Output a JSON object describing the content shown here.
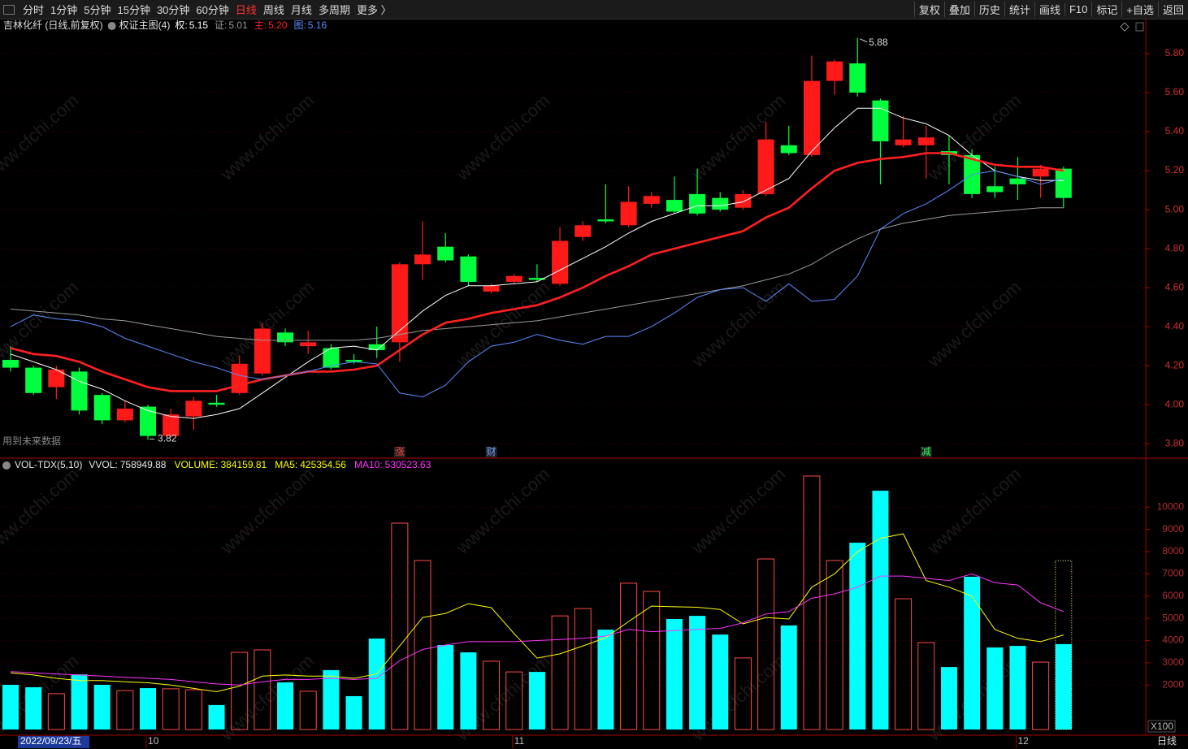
{
  "toolbar": {
    "periods": [
      "分时",
      "1分钟",
      "5分钟",
      "15分钟",
      "30分钟",
      "60分钟",
      "日线",
      "周线",
      "月线",
      "多周期",
      "更多 〉"
    ],
    "active_period": 6,
    "tools": [
      "复权",
      "叠加",
      "历史",
      "统计",
      "画线",
      "F10",
      "标记",
      "+自选",
      "返回"
    ]
  },
  "watermark": "www.cfchi.com",
  "future_note": "用到未来数据",
  "corner_label": "日线",
  "cursor_date": "2022/09/23/五",
  "chart_data": [
    {
      "type": "candlestick",
      "title": "吉林化纤 (日线,前复权)",
      "indicator": "权证主图(4)",
      "x_labels": [
        null,
        null,
        null,
        null,
        null,
        null,
        "10",
        null,
        null,
        null,
        null,
        null,
        null,
        null,
        null,
        null,
        null,
        null,
        null,
        null,
        null,
        null,
        "11",
        null,
        null,
        null,
        null,
        null,
        null,
        null,
        null,
        null,
        null,
        null,
        null,
        null,
        null,
        null,
        null,
        null,
        null,
        null,
        null,
        null,
        "12",
        null,
        null
      ],
      "open": [
        4.23,
        4.19,
        4.09,
        4.17,
        4.05,
        3.92,
        3.99,
        3.84,
        3.94,
        4.01,
        4.06,
        4.16,
        4.37,
        4.3,
        4.29,
        4.23,
        4.31,
        4.32,
        4.72,
        4.81,
        4.76,
        4.58,
        4.63,
        4.65,
        4.62,
        4.86,
        4.95,
        4.92,
        5.03,
        5.05,
        5.08,
        5.06,
        5.01,
        5.08,
        5.33,
        5.28,
        5.66,
        5.75,
        5.56,
        5.33,
        5.33,
        5.3,
        5.28,
        5.12,
        5.16,
        5.17,
        5.21
      ],
      "high": [
        4.3,
        4.2,
        4.2,
        4.19,
        4.06,
        4.02,
        4.0,
        3.98,
        4.04,
        4.05,
        4.25,
        4.42,
        4.39,
        4.38,
        4.31,
        4.26,
        4.4,
        4.73,
        4.94,
        4.88,
        4.77,
        4.62,
        4.67,
        4.72,
        4.91,
        4.94,
        5.13,
        5.12,
        5.09,
        5.17,
        5.21,
        5.09,
        5.1,
        5.45,
        5.43,
        5.79,
        5.77,
        5.88,
        5.57,
        5.48,
        5.43,
        5.38,
        5.31,
        5.22,
        5.27,
        5.23,
        5.22
      ],
      "low": [
        4.17,
        4.05,
        4.03,
        3.95,
        3.9,
        3.91,
        3.82,
        3.83,
        3.87,
        3.99,
        4.05,
        4.15,
        4.3,
        4.26,
        4.18,
        4.21,
        4.24,
        4.22,
        4.64,
        4.73,
        4.61,
        4.57,
        4.62,
        4.63,
        4.61,
        4.84,
        4.93,
        4.91,
        5.01,
        4.98,
        4.97,
        4.99,
        5.0,
        5.07,
        5.28,
        5.27,
        5.59,
        5.58,
        5.13,
        5.32,
        5.16,
        5.13,
        5.06,
        5.06,
        5.05,
        5.06,
        5.01
      ],
      "close": [
        4.19,
        4.06,
        4.18,
        3.97,
        3.92,
        3.98,
        3.84,
        3.95,
        4.02,
        4.0,
        4.21,
        4.39,
        4.32,
        4.32,
        4.19,
        4.22,
        4.28,
        4.72,
        4.77,
        4.74,
        4.63,
        4.61,
        4.66,
        4.64,
        4.84,
        4.92,
        4.94,
        5.04,
        5.07,
        4.99,
        4.98,
        5.0,
        5.08,
        5.36,
        5.29,
        5.66,
        5.76,
        5.6,
        5.35,
        5.36,
        5.37,
        5.28,
        5.08,
        5.09,
        5.13,
        5.21,
        5.06
      ],
      "up_color": "#ff1a1a",
      "down_color": "#00ff3c",
      "max_index": 37,
      "min_index": 6,
      "series": [
        {
          "name": "权:",
          "color": "#ffffff",
          "width": 1,
          "last_label": "5.15",
          "values": [
            4.26,
            4.22,
            4.18,
            4.12,
            4.08,
            4.02,
            3.97,
            3.94,
            3.93,
            3.95,
            3.98,
            4.06,
            4.14,
            4.22,
            4.29,
            4.3,
            4.28,
            4.38,
            4.48,
            4.56,
            4.61,
            4.61,
            4.62,
            4.63,
            4.69,
            4.75,
            4.81,
            4.88,
            4.94,
            4.98,
            5.02,
            5.02,
            5.04,
            5.1,
            5.16,
            5.3,
            5.42,
            5.52,
            5.52,
            5.47,
            5.44,
            5.38,
            5.28,
            5.2,
            5.17,
            5.15,
            5.15
          ]
        },
        {
          "name": "证:",
          "color": "#9a9a9a",
          "width": 1,
          "last_label": "5.01",
          "values": [
            4.49,
            4.48,
            4.47,
            4.46,
            4.44,
            4.43,
            4.41,
            4.39,
            4.37,
            4.35,
            4.34,
            4.33,
            4.33,
            4.33,
            4.33,
            4.33,
            4.34,
            4.36,
            4.38,
            4.39,
            4.4,
            4.41,
            4.42,
            4.43,
            4.45,
            4.47,
            4.49,
            4.51,
            4.53,
            4.55,
            4.57,
            4.59,
            4.61,
            4.64,
            4.67,
            4.72,
            4.79,
            4.85,
            4.9,
            4.93,
            4.95,
            4.97,
            4.98,
            4.99,
            5.0,
            5.01,
            5.01
          ]
        },
        {
          "name": "主:",
          "color": "#ff2020",
          "width": 2.6,
          "last_label": "5.20",
          "values": [
            4.29,
            4.26,
            4.25,
            4.22,
            4.17,
            4.13,
            4.09,
            4.07,
            4.07,
            4.07,
            4.1,
            4.13,
            4.15,
            4.17,
            4.17,
            4.18,
            4.2,
            4.28,
            4.36,
            4.42,
            4.44,
            4.47,
            4.49,
            4.51,
            4.55,
            4.6,
            4.66,
            4.71,
            4.77,
            4.8,
            4.83,
            4.86,
            4.89,
            4.96,
            5.01,
            5.11,
            5.2,
            5.24,
            5.26,
            5.27,
            5.29,
            5.29,
            5.26,
            5.23,
            5.22,
            5.22,
            5.2
          ]
        },
        {
          "name": "图:",
          "color": "#5b8cff",
          "width": 1,
          "last_label": "5.16",
          "values": [
            4.4,
            4.46,
            4.44,
            4.43,
            4.4,
            4.34,
            4.3,
            4.26,
            4.22,
            4.19,
            4.15,
            4.13,
            4.15,
            4.17,
            4.2,
            4.22,
            4.21,
            4.06,
            4.04,
            4.1,
            4.22,
            4.3,
            4.32,
            4.36,
            4.33,
            4.31,
            4.35,
            4.35,
            4.4,
            4.47,
            4.55,
            4.59,
            4.6,
            4.53,
            4.62,
            4.53,
            4.54,
            4.66,
            4.9,
            4.98,
            5.03,
            5.1,
            5.18,
            5.2,
            5.17,
            5.13,
            5.16
          ]
        }
      ],
      "annotations": [
        {
          "index": 17,
          "text": "涨",
          "color": "#ff4040"
        },
        {
          "index": 21,
          "text": "财",
          "color": "#6aa0ff"
        },
        {
          "index": 40,
          "text": "减",
          "color": "#30ff60"
        }
      ],
      "ylim": [
        3.73,
        5.9
      ],
      "yticks": [
        {
          "value": 3.8,
          "label": "3.80"
        },
        {
          "value": 4.0,
          "label": "4.00"
        },
        {
          "value": 4.2,
          "label": "4.20"
        },
        {
          "value": 4.4,
          "label": "4.40"
        },
        {
          "value": 4.6,
          "label": "4.60"
        },
        {
          "value": 4.8,
          "label": "4.80"
        },
        {
          "value": 5.0,
          "label": "5.00"
        },
        {
          "value": 5.2,
          "label": "5.20"
        },
        {
          "value": 5.4,
          "label": "5.40"
        },
        {
          "value": 5.6,
          "label": "5.60"
        },
        {
          "value": 5.8,
          "label": "5.80"
        }
      ],
      "grid": true
    },
    {
      "type": "bar",
      "title": "VOL-TDX(5,10)",
      "unit_label": "X100",
      "header": [
        {
          "name": "VVOL:",
          "label": "758949.88",
          "color": "#e8e8e8"
        },
        {
          "name": "VOLUME:",
          "label": "384159.81",
          "color": "#ffff00"
        },
        {
          "name": "MA5:",
          "label": "425354.56",
          "color": "#ffff00"
        },
        {
          "name": "MA10:",
          "label": "530523.63",
          "color": "#ff33ff"
        }
      ],
      "values": [
        2010,
        1900,
        1610,
        2480,
        2010,
        1750,
        1860,
        1830,
        1790,
        1100,
        3470,
        3580,
        2120,
        1720,
        2670,
        1500,
        4090,
        9280,
        7600,
        3800,
        3470,
        3070,
        2590,
        2590,
        5110,
        5440,
        4490,
        6580,
        6210,
        4970,
        5110,
        4270,
        3220,
        7670,
        4680,
        11400,
        7600,
        8400,
        10740,
        5880,
        3910,
        2810,
        6870,
        3690,
        3760,
        3030,
        3841.5981
      ],
      "vvol": 7589.4988,
      "up_color": "#ff4a4a",
      "down_color": "#00ffff",
      "series": [
        {
          "name": "MA5",
          "color": "#ffff00",
          "values": [
            2550,
            2450,
            2300,
            2200,
            2200,
            2150,
            2100,
            2000,
            1850,
            1700,
            1950,
            2400,
            2450,
            2400,
            2400,
            2300,
            2500,
            3760,
            5040,
            5220,
            5660,
            5480,
            4310,
            3210,
            3400,
            3760,
            4130,
            4860,
            5550,
            5520,
            5500,
            5400,
            4750,
            5040,
            4970,
            6400,
            7000,
            8000,
            8600,
            8800,
            6700,
            6400,
            6000,
            4500,
            4100,
            3950,
            4253.5456
          ]
        },
        {
          "name": "MA10",
          "color": "#ff33ff",
          "values": [
            2600,
            2550,
            2500,
            2450,
            2400,
            2350,
            2300,
            2250,
            2150,
            2050,
            2000,
            2150,
            2250,
            2250,
            2300,
            2250,
            2300,
            3100,
            3600,
            3800,
            3950,
            3950,
            3950,
            4000,
            4050,
            4100,
            4200,
            4500,
            4400,
            4450,
            4500,
            4550,
            4800,
            5200,
            5300,
            5900,
            6100,
            6400,
            6900,
            6900,
            6800,
            6700,
            7000,
            6600,
            6500,
            5700,
            5305.2363
          ]
        }
      ],
      "ylim": [
        0,
        12130
      ],
      "yticks": [
        2000,
        3000,
        4000,
        5000,
        6000,
        7000,
        8000,
        9000,
        10000
      ],
      "grid": true
    }
  ]
}
